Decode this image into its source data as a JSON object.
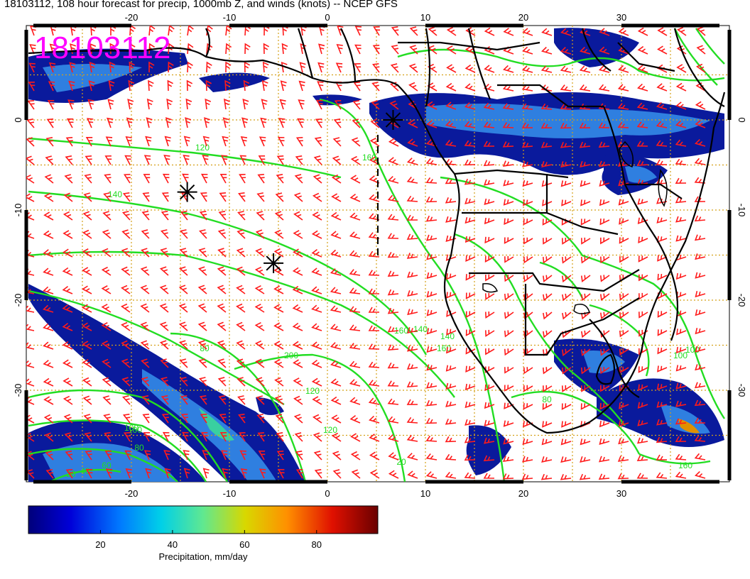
{
  "title": "18103112, 108 hour forecast for precip, 1000mb Z, and winds (knots) -- NCEP GFS",
  "stamp": "18103112",
  "colors": {
    "precip_low": "#0a1a9c",
    "precip_mid": "#2f7fe0",
    "precip_high": "#39d0a0",
    "contour": "#22dd22",
    "barb": "#ff1a1a",
    "grid": "#d4a017",
    "coast": "#000000"
  },
  "axes": {
    "lon_ticks": [
      "-20",
      "-10",
      "0",
      "10",
      "20",
      "30"
    ],
    "lat_ticks": [
      "0",
      "-10",
      "-20",
      "-30"
    ]
  },
  "contour_labels": [
    "120",
    "140",
    "160",
    "140",
    "160",
    "200",
    "120",
    "80",
    "100",
    "80",
    "60",
    "40",
    "20",
    "160",
    "140",
    "100",
    "120",
    "20",
    "100",
    "80",
    "160",
    "100"
  ],
  "colorbar": {
    "ticks": [
      "20",
      "40",
      "60",
      "80"
    ],
    "tick_values": [
      20,
      40,
      60,
      80
    ],
    "range": [
      0,
      97
    ],
    "label": "Precipitation, mm/day"
  },
  "markers": [
    {
      "name": "star-marker",
      "lon": -14.3,
      "lat": -8.0
    },
    {
      "name": "star-marker",
      "lon": -5.5,
      "lat": -15.9
    },
    {
      "name": "star-marker",
      "lon": 6.7,
      "lat": 0.0
    }
  ]
}
